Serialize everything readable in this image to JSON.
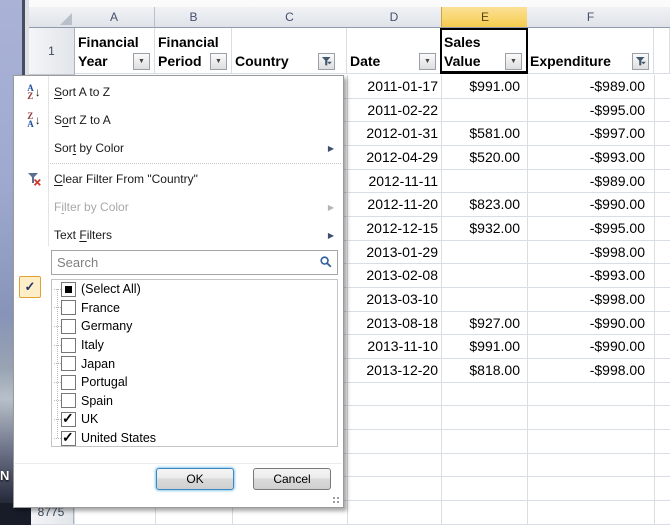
{
  "desktop": {
    "icon_label_fragment": "N"
  },
  "spreadsheet": {
    "col_headers": [
      "A",
      "B",
      "C",
      "D",
      "E",
      "F"
    ],
    "active_col": "E",
    "header_row": {
      "row_num": "1",
      "cells": [
        {
          "col": "A",
          "line1": "Financial",
          "line2": "Year",
          "filter": "dropdown"
        },
        {
          "col": "B",
          "line1": "Financial",
          "line2": "Period",
          "filter": "dropdown"
        },
        {
          "col": "C",
          "line1": "",
          "line2": "Country",
          "filter": "funnel"
        },
        {
          "col": "D",
          "line1": "",
          "line2": "Date",
          "filter": "dropdown"
        },
        {
          "col": "E",
          "line1": "Sales",
          "line2": "Value",
          "filter": "dropdown",
          "selected": true
        },
        {
          "col": "F",
          "line1": "",
          "line2": "Expenditure",
          "filter": "funnel"
        }
      ]
    },
    "rows": [
      {
        "date": "2011-01-17",
        "sales": "$991.00",
        "expenditure": "-$989.00"
      },
      {
        "date": "2011-02-22",
        "sales": "",
        "expenditure": "-$995.00"
      },
      {
        "date": "2012-01-31",
        "sales": "$581.00",
        "expenditure": "-$997.00"
      },
      {
        "date": "2012-04-29",
        "sales": "$520.00",
        "expenditure": "-$993.00"
      },
      {
        "date": "2012-11-11",
        "sales": "",
        "expenditure": "-$989.00"
      },
      {
        "date": "2012-11-20",
        "sales": "$823.00",
        "expenditure": "-$990.00"
      },
      {
        "date": "2012-12-15",
        "sales": "$932.00",
        "expenditure": "-$995.00"
      },
      {
        "date": "2013-01-29",
        "sales": "",
        "expenditure": "-$998.00"
      },
      {
        "date": "2013-02-08",
        "sales": "",
        "expenditure": "-$993.00"
      },
      {
        "date": "2013-03-10",
        "sales": "",
        "expenditure": "-$998.00"
      },
      {
        "date": "2013-08-18",
        "sales": "$927.00",
        "expenditure": "-$990.00"
      },
      {
        "date": "2013-11-10",
        "sales": "$991.00",
        "expenditure": "-$990.00"
      },
      {
        "date": "2013-12-20",
        "sales": "$818.00",
        "expenditure": "-$998.00"
      }
    ],
    "bottom_row_number": "8775"
  },
  "filter_menu": {
    "items": [
      {
        "pre": "",
        "u": "S",
        "post": "ort A to Z",
        "icon": "sort-az",
        "enabled": true,
        "submenu": false
      },
      {
        "pre": "S",
        "u": "o",
        "post": "rt Z to A",
        "icon": "sort-za",
        "enabled": true,
        "submenu": false
      },
      {
        "pre": "Sor",
        "u": "t",
        "post": " by Color",
        "icon": "",
        "enabled": true,
        "submenu": true,
        "separator_after": true
      },
      {
        "pre": "",
        "u": "C",
        "post": "lear Filter From \"Country\"",
        "icon": "clear-filter",
        "enabled": true,
        "submenu": false
      },
      {
        "pre": "F",
        "u": "i",
        "post": "lter by Color",
        "icon": "",
        "enabled": false,
        "submenu": true
      },
      {
        "pre": "Text ",
        "u": "F",
        "post": "ilters",
        "icon": "",
        "enabled": true,
        "submenu": true
      }
    ],
    "search_placeholder": "Search",
    "list": [
      {
        "label": "(Select All)",
        "state": "indeterminate"
      },
      {
        "label": "France",
        "state": "unchecked"
      },
      {
        "label": "Germany",
        "state": "unchecked"
      },
      {
        "label": "Italy",
        "state": "unchecked"
      },
      {
        "label": "Japan",
        "state": "unchecked"
      },
      {
        "label": "Portugal",
        "state": "unchecked"
      },
      {
        "label": "Spain",
        "state": "unchecked"
      },
      {
        "label": "UK",
        "state": "checked"
      },
      {
        "label": "United States",
        "state": "checked"
      }
    ],
    "ok_label": "OK",
    "cancel_label": "Cancel"
  },
  "colors": {
    "selected_column_header": "#f6cc4e",
    "check_icon_highlight": "#e0a235",
    "gridline": "#d9dde4",
    "clear_filter_x": "#cf3a2f"
  }
}
